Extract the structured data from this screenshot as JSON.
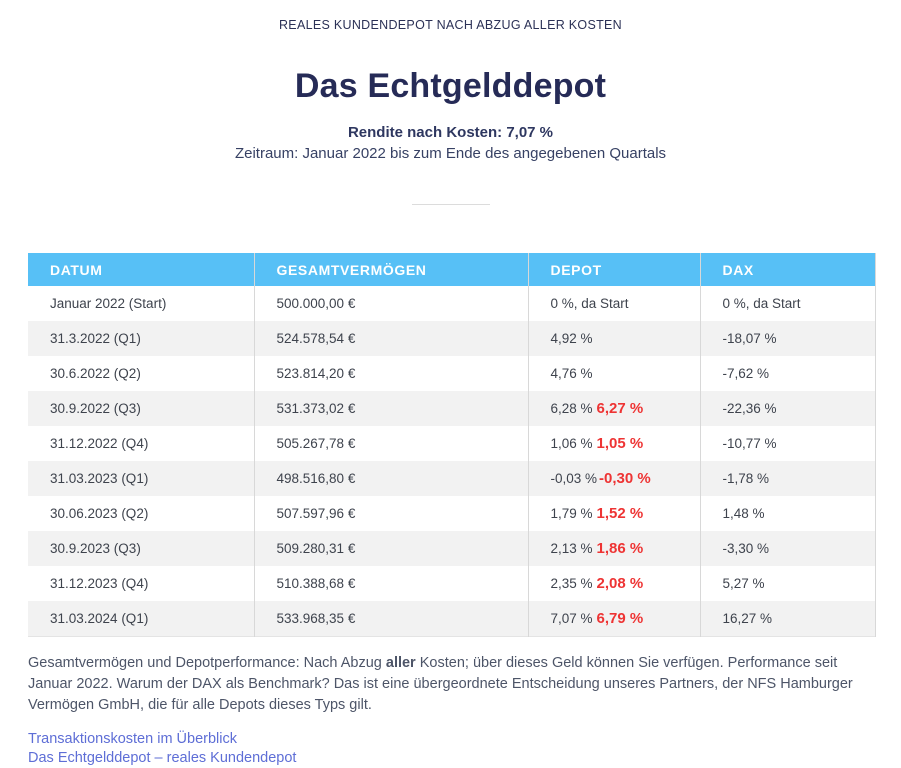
{
  "page": {
    "eyebrow": "REALES KUNDENDEPOT NACH ABZUG ALLER KOSTEN",
    "title": "Das Echtgelddepot",
    "subtitle_bold": "Rendite nach Kosten: 7,07 %",
    "subtitle": "Zeitraum: Januar 2022 bis zum Ende des angegebenen Quartals"
  },
  "table": {
    "columns": [
      "DATUM",
      "GESAMTVERMÖGEN",
      "DEPOT",
      "DAX"
    ],
    "rows": [
      {
        "datum": "Januar 2022 (Start)",
        "gesamtvermoegen": "500.000,00 €",
        "depot": "0 %, da Start",
        "depot_red": "",
        "dax": "0 %, da Start"
      },
      {
        "datum": "31.3.2022 (Q1)",
        "gesamtvermoegen": "524.578,54 €",
        "depot": "4,92 %",
        "depot_red": "",
        "dax": "-18,07 %"
      },
      {
        "datum": "30.6.2022 (Q2)",
        "gesamtvermoegen": "523.814,20 €",
        "depot": "4,76 %",
        "depot_red": "",
        "dax": "-7,62 %"
      },
      {
        "datum": "30.9.2022 (Q3)",
        "gesamtvermoegen": "531.373,02 €",
        "depot": "6,28 %",
        "depot_red": "6,27 %",
        "dax": "-22,36 %"
      },
      {
        "datum": "31.12.2022 (Q4)",
        "gesamtvermoegen": "505.267,78 €",
        "depot": "1,06 %",
        "depot_red": "1,05 %",
        "dax": "-10,77 %"
      },
      {
        "datum": "31.03.2023 (Q1)",
        "gesamtvermoegen": "498.516,80 €",
        "depot": "-0,03 %",
        "depot_red": "-0,30 %",
        "dax": "-1,78 %"
      },
      {
        "datum": "30.06.2023 (Q2)",
        "gesamtvermoegen": "507.597,96 €",
        "depot": "1,79 %",
        "depot_red": "1,52 %",
        "dax": "1,48 %"
      },
      {
        "datum": "30.9.2023 (Q3)",
        "gesamtvermoegen": "509.280,31 €",
        "depot": "2,13 %",
        "depot_red": "1,86 %",
        "dax": "-3,30 %"
      },
      {
        "datum": "31.12.2023 (Q4)",
        "gesamtvermoegen": "510.388,68 €",
        "depot": "2,35 %",
        "depot_red": "2,08 %",
        "dax": "5,27 %"
      },
      {
        "datum": "31.03.2024 (Q1)",
        "gesamtvermoegen": "533.968,35 €",
        "depot": "7,07 %",
        "depot_red": "6,79 %",
        "dax": "16,27 %"
      }
    ]
  },
  "footer": {
    "note_before": "Gesamtvermögen und Depotperformance: Nach Abzug ",
    "note_bold": "aller",
    "note_after": " Kosten; über dieses Geld können Sie verfügen. Performance seit Januar 2022. Warum der DAX als Benchmark? Das ist eine übergeordnete Entscheidung unseres Partners, der NFS Hamburger Vermögen GmbH, die für alle Depots dieses Typs gilt.",
    "links": [
      "Transaktionskosten im Überblick",
      "Das Echtgelddepot – reales Kundendepot"
    ]
  },
  "colors": {
    "header_blue": "#57c0f6",
    "negative_red": "#ee3434",
    "title_navy": "#262b57",
    "link_blue": "#5e6ed6",
    "row_stripe": "#f2f2f2"
  }
}
